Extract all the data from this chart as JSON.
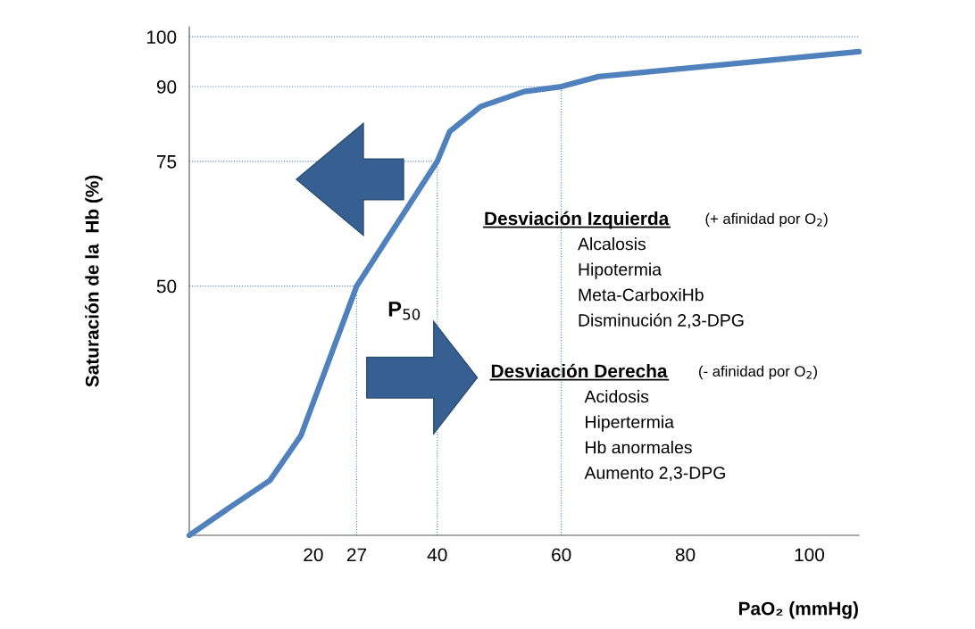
{
  "chart_data": {
    "type": "line",
    "xlabel": "PaO₂ (mmHg)",
    "ylabel": "Saturación de la  Hb (%)",
    "x": [
      0,
      7,
      13,
      18,
      27,
      40,
      42,
      47,
      54,
      60,
      66,
      108
    ],
    "series": [
      {
        "color": "#4f81bd",
        "values": [
          0,
          6,
          11,
          20,
          50,
          75,
          81,
          86,
          89,
          90,
          92,
          97
        ]
      }
    ],
    "xlim": [
      0,
      108
    ],
    "ylim": [
      0,
      102
    ],
    "xticks": [
      20,
      27,
      40,
      60,
      80,
      100
    ],
    "yticks": [
      50,
      75,
      90,
      100
    ],
    "grid": false,
    "legend": false,
    "marker": "none",
    "line_style": "solid",
    "ref_lines": [
      {
        "axis": "y",
        "value": 100,
        "color": "#4f81bd",
        "line_style": "dotted"
      },
      {
        "axis": "y",
        "value": 90,
        "color": "#4f81bd",
        "line_style": "dotted"
      },
      {
        "axis": "y",
        "value": 75,
        "color": "#4f81bd",
        "line_style": "dotted"
      },
      {
        "axis": "y",
        "value": 50,
        "color": "#4f81bd",
        "line_style": "dotted"
      },
      {
        "axis": "x",
        "value": 27,
        "color": "#4f81bd",
        "line_style": "dotted"
      },
      {
        "axis": "x",
        "value": 40,
        "color": "#4f81bd",
        "line_style": "dotted"
      },
      {
        "axis": "x",
        "value": 60,
        "color": "#4f81bd",
        "line_style": "dotted"
      }
    ],
    "annotations": [
      {
        "text": "P$_{50}$",
        "x": 27,
        "y": 50
      },
      "Desviación Izquierda",
      "(+ afinidad por O$_{2}$)",
      "Alcalosis",
      "Hipotermia",
      "Meta-CarboxiHb",
      "Disminución 2,3-DPG",
      "Desviación Derecha",
      "(- afinidad por O$_{2}$)",
      "Acidosis",
      "Hipertermia",
      "Hb anormales",
      "Aumento 2,3-DPG"
    ]
  }
}
